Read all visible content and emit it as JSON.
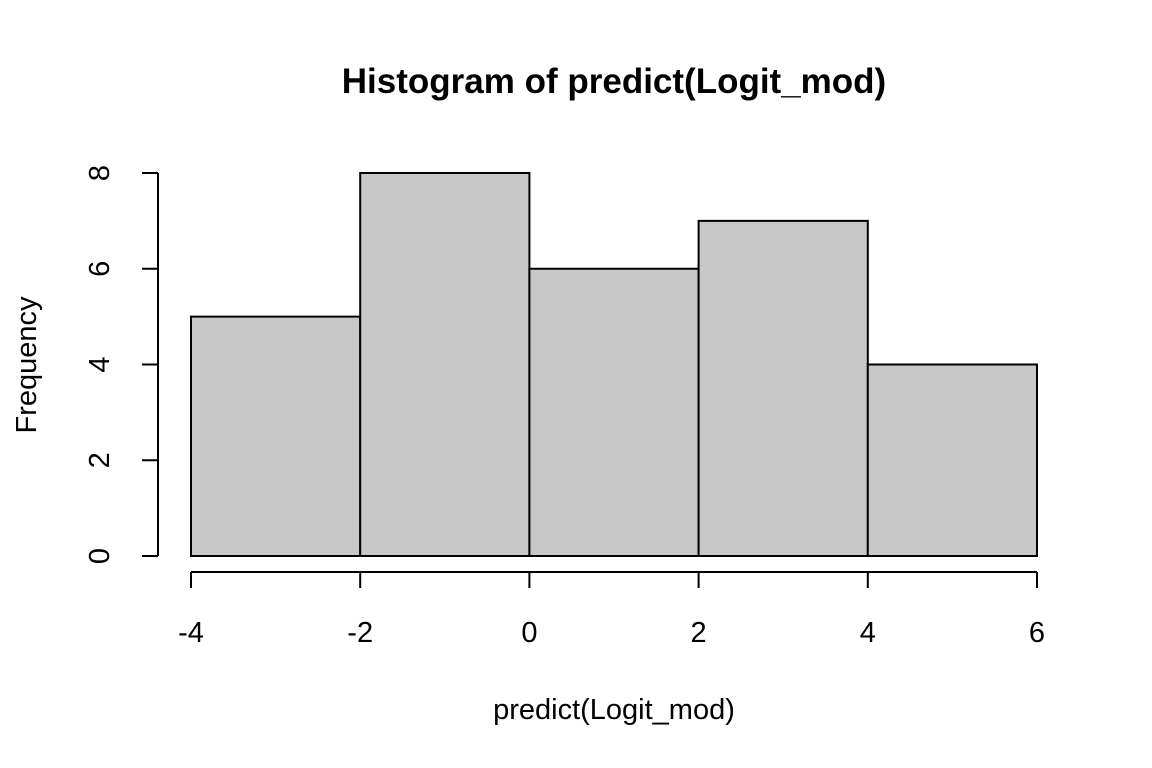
{
  "chart_data": {
    "type": "bar",
    "title": "Histogram of predict(Logit_mod)",
    "xlabel": "predict(Logit_mod)",
    "ylabel": "Frequency",
    "bins": [
      {
        "x0": -4,
        "x1": -2,
        "count": 5
      },
      {
        "x0": -2,
        "x1": 0,
        "count": 8
      },
      {
        "x0": 0,
        "x1": 2,
        "count": 6
      },
      {
        "x0": 2,
        "x1": 4,
        "count": 7
      },
      {
        "x0": 4,
        "x1": 6,
        "count": 4
      }
    ],
    "xticks": [
      -4,
      -2,
      0,
      2,
      4,
      6
    ],
    "xtick_labels": [
      "-4",
      "-2",
      "0",
      "2",
      "4",
      "6"
    ],
    "yticks": [
      0,
      2,
      4,
      6,
      8
    ],
    "ytick_labels": [
      "0",
      "2",
      "4",
      "6",
      "8"
    ],
    "xlim": [
      -4,
      6
    ],
    "ylim": [
      0,
      8
    ],
    "bar_fill": "#c8c8c8",
    "bar_stroke": "#000000",
    "grid": false,
    "legend": "none"
  }
}
